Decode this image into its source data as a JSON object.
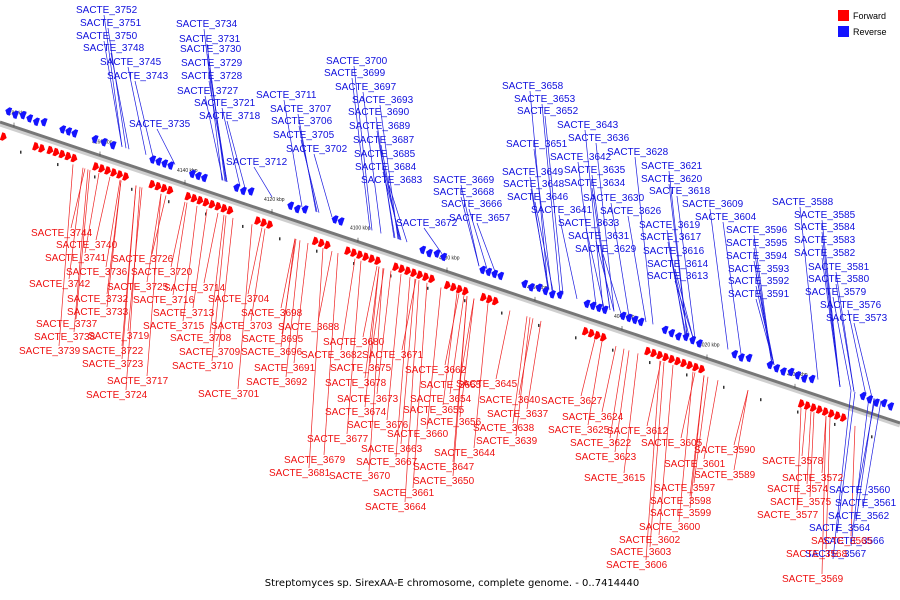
{
  "colors": {
    "forward": "#ff0000",
    "reverse": "#1414ff",
    "axis": "#777777"
  },
  "legend": [
    {
      "label": "Forward",
      "color": "#ff0000"
    },
    {
      "label": "Reverse",
      "color": "#1414ff"
    }
  ],
  "caption": "Streptomyces sp. SirexAA-E chromosome, complete genome. - 0..7414440",
  "scale_ticks": [
    "4180 kbp",
    "4160 kbp",
    "4140 kbp",
    "4120 kbp",
    "4100 kbp",
    "4080 kbp",
    "4060 kbp",
    "4040 kbp",
    "4020 kbp",
    "4000 kbp"
  ],
  "reverse_labels": [
    "SACTE_3752",
    "SACTE_3751",
    "SACTE_3750",
    "SACTE_3748",
    "SACTE_3745",
    "SACTE_3743",
    "SACTE_3734",
    "SACTE_3731",
    "SACTE_3730",
    "SACTE_3729",
    "SACTE_3728",
    "SACTE_3727",
    "SACTE_3721",
    "SACTE_3718",
    "SACTE_3735",
    "SACTE_3711",
    "SACTE_3707",
    "SACTE_3706",
    "SACTE_3705",
    "SACTE_3702",
    "SACTE_3712",
    "SACTE_3700",
    "SACTE_3699",
    "SACTE_3697",
    "SACTE_3693",
    "SACTE_3690",
    "SACTE_3689",
    "SACTE_3687",
    "SACTE_3685",
    "SACTE_3684",
    "SACTE_3683",
    "SACTE_3672",
    "SACTE_3669",
    "SACTE_3668",
    "SACTE_3666",
    "SACTE_3657",
    "SACTE_3658",
    "SACTE_3653",
    "SACTE_3652",
    "SACTE_3643",
    "SACTE_3636",
    "SACTE_3651",
    "SACTE_3642",
    "SACTE_3649",
    "SACTE_3635",
    "SACTE_3648",
    "SACTE_3634",
    "SACTE_3646",
    "SACTE_3630",
    "SACTE_3641",
    "SACTE_3626",
    "SACTE_3633",
    "SACTE_3631",
    "SACTE_3629",
    "SACTE_3628",
    "SACTE_3621",
    "SACTE_3620",
    "SACTE_3618",
    "SACTE_3619",
    "SACTE_3617",
    "SACTE_3616",
    "SACTE_3614",
    "SACTE_3613",
    "SACTE_3609",
    "SACTE_3604",
    "SACTE_3596",
    "SACTE_3595",
    "SACTE_3594",
    "SACTE_3593",
    "SACTE_3592",
    "SACTE_3591",
    "SACTE_3588",
    "SACTE_3585",
    "SACTE_3584",
    "SACTE_3583",
    "SACTE_3582",
    "SACTE_3581",
    "SACTE_3580",
    "SACTE_3579",
    "SACTE_3576",
    "SACTE_3573",
    "SACTE_3560",
    "SACTE_3561",
    "SACTE_3562",
    "SACTE_3564",
    "SACTE_3566",
    "SACTE_3567"
  ],
  "forward_labels": [
    "SACTE_3744",
    "SACTE_3740",
    "SACTE_3741",
    "SACTE_3736",
    "SACTE_3726",
    "SACTE_3742",
    "SACTE_3720",
    "SACTE_3732",
    "SACTE_3725",
    "SACTE_3733",
    "SACTE_3714",
    "SACTE_3716",
    "SACTE_3737",
    "SACTE_3713",
    "SACTE_3704",
    "SACTE_3738",
    "SACTE_3715",
    "SACTE_3698",
    "SACTE_3739",
    "SACTE_3719",
    "SACTE_3703",
    "SACTE_3688",
    "SACTE_3722",
    "SACTE_3708",
    "SACTE_3695",
    "SACTE_3723",
    "SACTE_3709",
    "SACTE_3696",
    "SACTE_3680",
    "SACTE_3717",
    "SACTE_3710",
    "SACTE_3682",
    "SACTE_3671",
    "SACTE_3691",
    "SACTE_3724",
    "SACTE_3692",
    "SACTE_3675",
    "SACTE_3701",
    "SACTE_3678",
    "SACTE_3662",
    "SACTE_3665",
    "SACTE_3645",
    "SACTE_3673",
    "SACTE_3654",
    "SACTE_3674",
    "SACTE_3655",
    "SACTE_3640",
    "SACTE_3676",
    "SACTE_3656",
    "SACTE_3637",
    "SACTE_3677",
    "SACTE_3660",
    "SACTE_3638",
    "SACTE_3663",
    "SACTE_3639",
    "SACTE_3679",
    "SACTE_3667",
    "SACTE_3644",
    "SACTE_3681",
    "SACTE_3670",
    "SACTE_3647",
    "SACTE_3650",
    "SACTE_3661",
    "SACTE_3664",
    "SACTE_3627",
    "SACTE_3624",
    "SACTE_3625",
    "SACTE_3612",
    "SACTE_3622",
    "SACTE_3605",
    "SACTE_3623",
    "SACTE_3601",
    "SACTE_3590",
    "SACTE_3615",
    "SACTE_3589",
    "SACTE_3597",
    "SACTE_3598",
    "SACTE_3599",
    "SACTE_3600",
    "SACTE_3602",
    "SACTE_3603",
    "SACTE_3606",
    "SACTE_3578",
    "SACTE_3572",
    "SACTE_3574",
    "SACTE_3575",
    "SACTE_3577",
    "SACTE_3565",
    "SACTE_3568",
    "SACTE_3569"
  ]
}
